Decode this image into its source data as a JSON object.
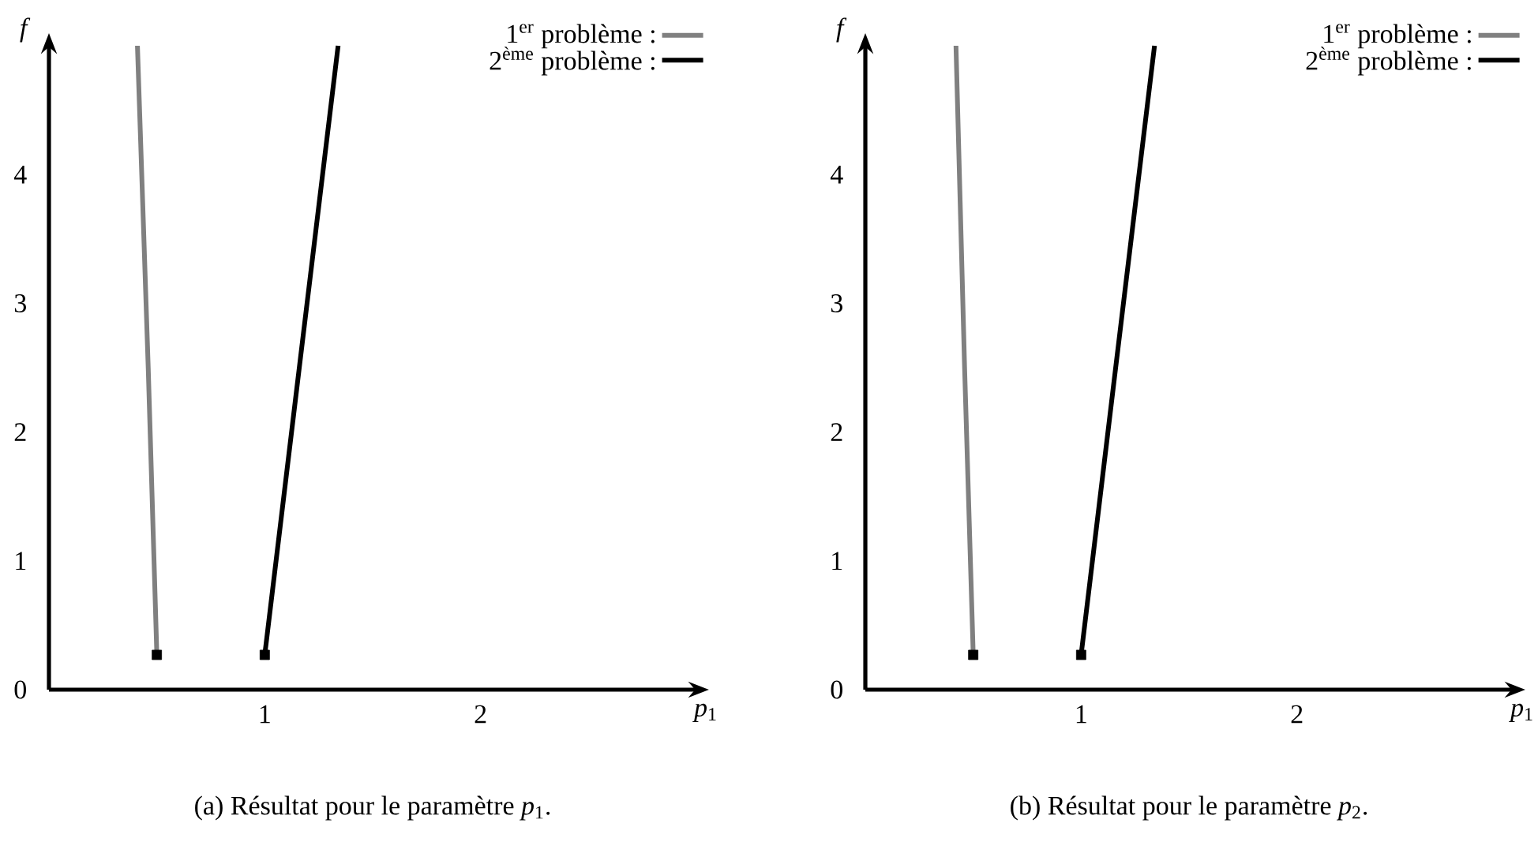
{
  "chart_data": [
    {
      "type": "line",
      "xlabel": "*p*$_{1}$",
      "ylabel": "*f*",
      "xlim": [
        0,
        3
      ],
      "ylim": [
        0,
        5
      ],
      "xticks": [
        1,
        2
      ],
      "yticks": [
        0,
        1,
        2,
        3,
        4
      ],
      "legend": "top right",
      "annotations": [
        "(a) Résultat pour le paramètre *p*$_{1}$."
      ],
      "series": [
        {
          "name": "1$^{er}$ problème :",
          "color": "#808080",
          "x": [
            0.5,
            0.46,
            0.41
          ],
          "values": [
            0.27,
            2.5,
            5
          ]
        },
        {
          "name": "2$^{ème}$ problème :",
          "color": "#000000",
          "x": [
            1.0,
            1.16,
            1.34
          ],
          "values": [
            0.27,
            2.5,
            5
          ]
        },
        {
          "type": "scatter",
          "color": "#000000",
          "marker": "square",
          "x": [
            0.5,
            1.0
          ],
          "values": [
            0.27,
            0.27
          ]
        }
      ]
    },
    {
      "type": "line",
      "xlabel": "*p*$_{1}$",
      "ylabel": "*f*",
      "xlim": [
        0,
        3
      ],
      "ylim": [
        0,
        5
      ],
      "xticks": [
        1,
        2
      ],
      "yticks": [
        0,
        1,
        2,
        3,
        4
      ],
      "legend": "top right",
      "annotations": [
        "(b) Résultat pour le paramètre *p*$_{2}$."
      ],
      "series": [
        {
          "name": "1$^{er}$ problème :",
          "color": "#808080",
          "x": [
            0.5,
            0.46,
            0.42
          ],
          "values": [
            0.27,
            2.5,
            5
          ]
        },
        {
          "name": "2$^{ème}$ problème :",
          "color": "#000000",
          "x": [
            1.0,
            1.16,
            1.34
          ],
          "values": [
            0.27,
            2.5,
            5
          ]
        },
        {
          "type": "scatter",
          "color": "#000000",
          "marker": "square",
          "x": [
            0.5,
            1.0
          ],
          "values": [
            0.27,
            0.27
          ]
        }
      ]
    }
  ]
}
